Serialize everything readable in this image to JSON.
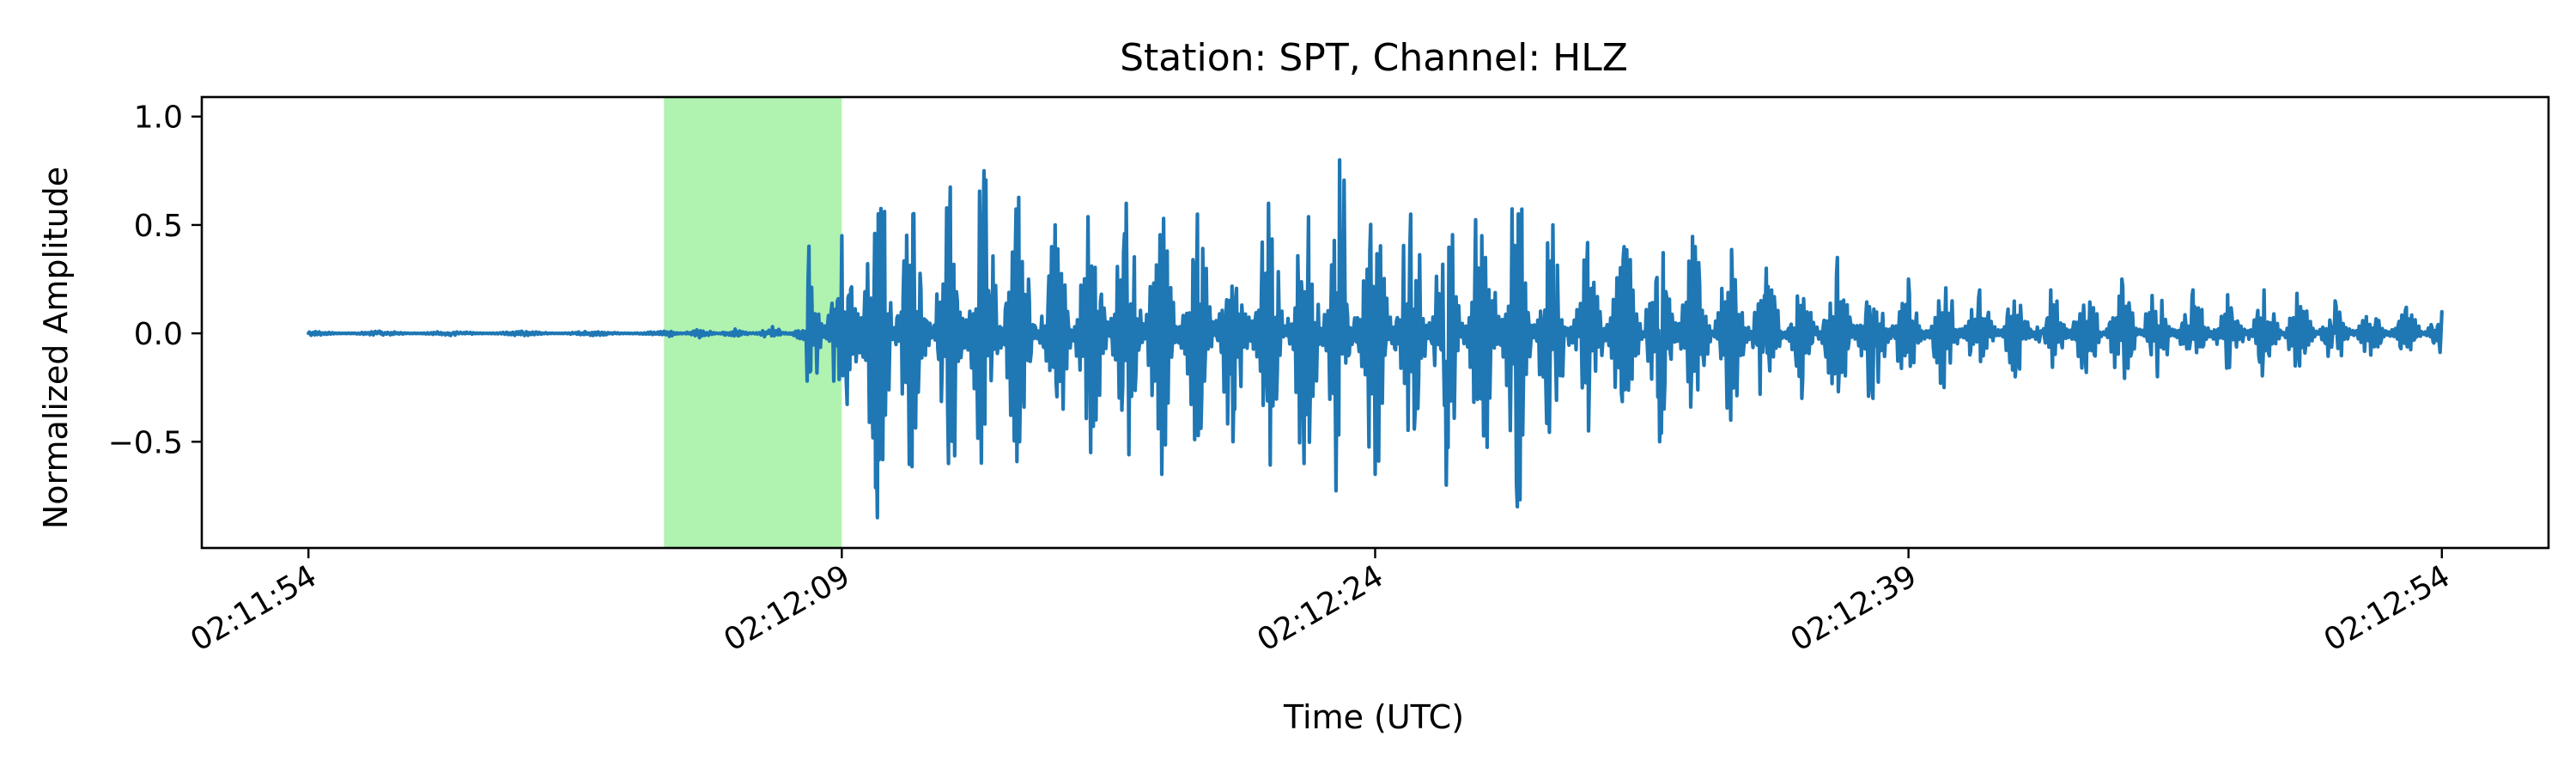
{
  "chart_data": {
    "type": "line",
    "title": "Station: SPT, Channel: HLZ",
    "xlabel": "Time (UTC)",
    "ylabel": "Normalized Amplitude",
    "x_time_range": [
      "02:11:54",
      "02:12:54"
    ],
    "x_ticks": [
      "02:11:54",
      "02:12:09",
      "02:12:24",
      "02:12:39",
      "02:12:54"
    ],
    "xlim": [
      "02:11:51",
      "02:12:57"
    ],
    "ylim": [
      -0.99,
      1.09
    ],
    "y_ticks": [
      {
        "value": 1.0,
        "label": "1.0"
      },
      {
        "value": 0.5,
        "label": "0.5"
      },
      {
        "value": 0.0,
        "label": "0.0"
      },
      {
        "value": -0.5,
        "label": "−0.5"
      }
    ],
    "grid": false,
    "highlight_window": {
      "start": "02:12:04",
      "end": "02:12:09",
      "color": "#b0f2b0"
    },
    "series": [
      {
        "line_color": "#1f77b4",
        "points": [
          [
            "02:11:54",
            0.0
          ],
          [
            "02:11:56",
            0.01
          ],
          [
            "02:11:58",
            -0.01
          ],
          [
            "02:12:00",
            0.01
          ],
          [
            "02:12:02",
            -0.01
          ],
          [
            "02:12:04",
            0.01
          ],
          [
            "02:12:05",
            -0.02
          ],
          [
            "02:12:06",
            0.02
          ],
          [
            "02:12:07",
            0.01
          ],
          [
            "02:12:08",
            -0.04
          ],
          [
            "02:12:09",
            0.45
          ],
          [
            "02:12:10",
            -0.85
          ],
          [
            "02:12:11",
            0.55
          ],
          [
            "02:12:12",
            -0.6
          ],
          [
            "02:12:13",
            0.75
          ],
          [
            "02:12:14",
            -0.5
          ],
          [
            "02:12:15",
            0.5
          ],
          [
            "02:12:16",
            -0.55
          ],
          [
            "02:12:17",
            0.6
          ],
          [
            "02:12:18",
            -0.65
          ],
          [
            "02:12:19",
            0.55
          ],
          [
            "02:12:20",
            -0.5
          ],
          [
            "02:12:21",
            0.6
          ],
          [
            "02:12:22",
            -0.6
          ],
          [
            "02:12:23",
            0.8
          ],
          [
            "02:12:24",
            -0.65
          ],
          [
            "02:12:25",
            0.55
          ],
          [
            "02:12:26",
            -0.7
          ],
          [
            "02:12:27",
            0.45
          ],
          [
            "02:12:28",
            -0.8
          ],
          [
            "02:12:29",
            0.5
          ],
          [
            "02:12:30",
            -0.45
          ],
          [
            "02:12:31",
            0.4
          ],
          [
            "02:12:32",
            -0.5
          ],
          [
            "02:12:33",
            0.4
          ],
          [
            "02:12:34",
            -0.4
          ],
          [
            "02:12:35",
            0.3
          ],
          [
            "02:12:36",
            -0.3
          ],
          [
            "02:12:37",
            0.35
          ],
          [
            "02:12:38",
            -0.3
          ],
          [
            "02:12:39",
            0.25
          ],
          [
            "02:12:40",
            -0.25
          ],
          [
            "02:12:41",
            0.2
          ],
          [
            "02:12:42",
            -0.2
          ],
          [
            "02:12:43",
            0.2
          ],
          [
            "02:12:44",
            -0.18
          ],
          [
            "02:12:45",
            0.25
          ],
          [
            "02:12:46",
            -0.2
          ],
          [
            "02:12:47",
            0.2
          ],
          [
            "02:12:48",
            -0.15
          ],
          [
            "02:12:49",
            0.2
          ],
          [
            "02:12:50",
            -0.15
          ],
          [
            "02:12:51",
            0.15
          ],
          [
            "02:12:52",
            -0.1
          ],
          [
            "02:12:53",
            0.12
          ],
          [
            "02:12:54",
            0.1
          ]
        ]
      }
    ]
  }
}
